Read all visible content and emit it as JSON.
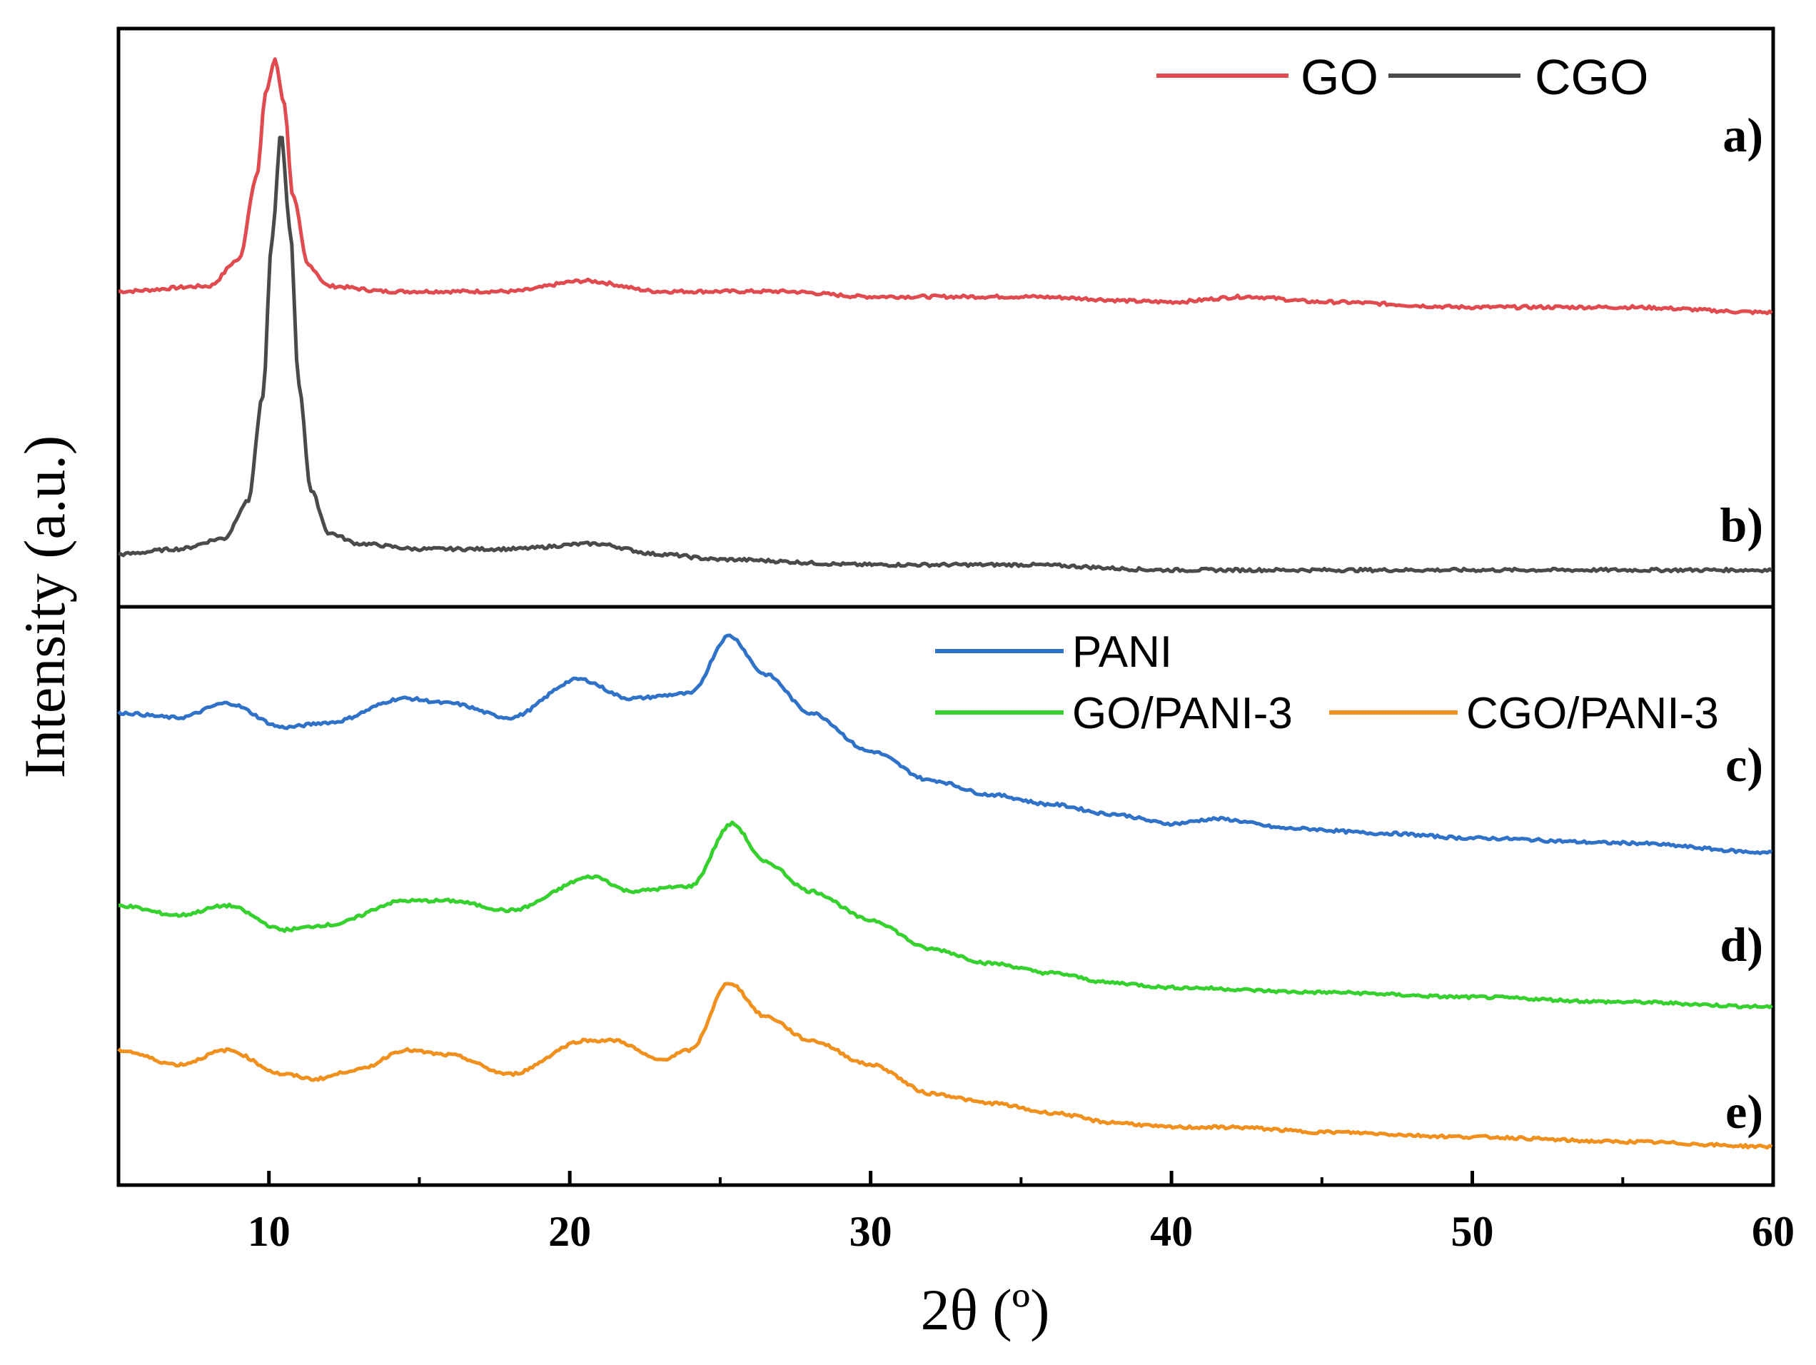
{
  "chart_data": {
    "type": "line",
    "xlabel": "2θ (º)",
    "ylabel": "Intensity (a.u.)",
    "xlim": [
      5,
      60
    ],
    "xticks": [
      "10",
      "20",
      "30",
      "40",
      "50",
      "60"
    ],
    "panels": [
      {
        "name": "top",
        "legend": [
          "GO",
          "CGO"
        ],
        "series": [
          {
            "name": "GO",
            "label": "a)",
            "color": "#e04b4f",
            "x": [
              5,
              8,
              9,
              9.6,
              9.9,
              10.2,
              10.5,
              10.8,
              11.3,
              12,
              14,
              18,
              20.5,
              23,
              27,
              30,
              35,
              40,
              42.5,
              45,
              50,
              55,
              60
            ],
            "y": [
              0.5,
              0.51,
              0.56,
              0.72,
              0.88,
              0.94,
              0.86,
              0.68,
              0.55,
              0.51,
              0.5,
              0.5,
              0.52,
              0.5,
              0.5,
              0.49,
              0.49,
              0.48,
              0.49,
              0.48,
              0.47,
              0.47,
              0.46
            ]
          },
          {
            "name": "CGO",
            "label": "b)",
            "color": "#4a4a4a",
            "x": [
              5,
              7,
              8.5,
              9.3,
              9.8,
              10.1,
              10.4,
              10.7,
              11.0,
              11.4,
              12,
              13,
              15,
              18,
              20.8,
              23,
              25,
              30,
              35,
              40,
              45,
              50,
              55,
              60
            ],
            "y": [
              0.0,
              0.01,
              0.03,
              0.1,
              0.3,
              0.6,
              0.8,
              0.62,
              0.32,
              0.12,
              0.04,
              0.02,
              0.01,
              0.01,
              0.02,
              0.0,
              -0.01,
              -0.02,
              -0.02,
              -0.03,
              -0.03,
              -0.03,
              -0.03,
              -0.03
            ]
          }
        ]
      },
      {
        "name": "bottom",
        "legend": [
          "PANI",
          "GO/PANI-3",
          "CGO/PANI-3"
        ],
        "series": [
          {
            "name": "PANI",
            "label": "c)",
            "color": "#2f72c8",
            "x": [
              5,
              7,
              8.6,
              10.5,
              12,
              14.5,
              16,
              18,
              20.3,
              22,
              24,
              25.3,
              26.5,
              28,
              30,
              32,
              34,
              36,
              38,
              40,
              41.5,
              44,
              47,
              50,
              55,
              60
            ],
            "y": [
              1.18,
              1.17,
              1.2,
              1.15,
              1.16,
              1.21,
              1.2,
              1.17,
              1.25,
              1.21,
              1.22,
              1.34,
              1.26,
              1.18,
              1.1,
              1.04,
              1.01,
              0.99,
              0.97,
              0.95,
              0.96,
              0.94,
              0.93,
              0.92,
              0.91,
              0.89
            ]
          },
          {
            "name": "GO/PANI-3",
            "label": "d)",
            "color": "#36d12e",
            "x": [
              5,
              7,
              8.6,
              10.5,
              12,
              14.5,
              16,
              18,
              20.8,
              22,
              24,
              25.4,
              26.5,
              28,
              30,
              32,
              34,
              36,
              38,
              40,
              45,
              50,
              55,
              60
            ],
            "y": [
              0.78,
              0.76,
              0.78,
              0.73,
              0.74,
              0.79,
              0.79,
              0.77,
              0.84,
              0.81,
              0.82,
              0.95,
              0.87,
              0.81,
              0.75,
              0.69,
              0.66,
              0.64,
              0.62,
              0.61,
              0.6,
              0.59,
              0.58,
              0.57
            ]
          },
          {
            "name": "CGO/PANI-3",
            "label": "e)",
            "color": "#f0901e",
            "x": [
              5,
              7,
              8.6,
              10.5,
              11.5,
              13,
              14.5,
              16,
              18,
              20.5,
              21.5,
              23,
              24,
              25.3,
              26.5,
              28,
              30,
              32,
              34,
              36,
              38,
              40,
              42,
              45,
              50,
              55,
              60
            ],
            "y": [
              0.48,
              0.45,
              0.48,
              0.43,
              0.42,
              0.44,
              0.48,
              0.47,
              0.43,
              0.5,
              0.5,
              0.46,
              0.48,
              0.62,
              0.55,
              0.5,
              0.45,
              0.39,
              0.37,
              0.35,
              0.33,
              0.32,
              0.32,
              0.31,
              0.3,
              0.29,
              0.28
            ]
          }
        ]
      }
    ]
  }
}
